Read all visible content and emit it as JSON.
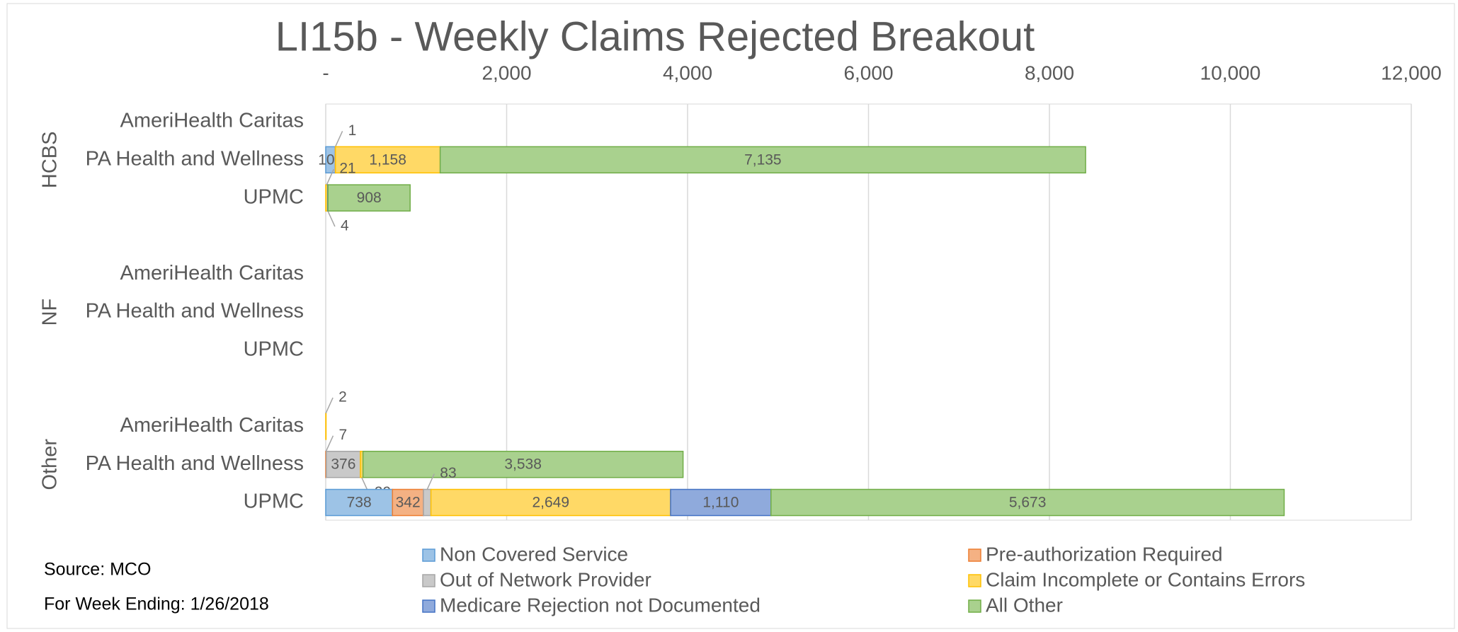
{
  "chart_data": {
    "type": "stacked-barh",
    "title": "LI15b - Weekly Claims Rejected Breakout",
    "groups": [
      "HCBS",
      "NF",
      "Other"
    ],
    "categories": [
      "AmeriHealth Caritas",
      "PA Health and Wellness",
      "UPMC",
      "AmeriHealth Caritas",
      "PA Health and Wellness",
      "UPMC",
      "AmeriHealth Caritas",
      "PA Health and Wellness",
      "UPMC"
    ],
    "series": [
      {
        "name": "Non Covered Service",
        "color": "#9dc3e6",
        "stroke": "#5b9bd5",
        "values": [
          null,
          106,
          null,
          null,
          null,
          null,
          null,
          null,
          738
        ],
        "value_labels": [
          null,
          null,
          null,
          null,
          null,
          null,
          null,
          null,
          null
        ]
      },
      {
        "name": "Pre-authorization Required",
        "color": "#f4b183",
        "stroke": "#ed7d31",
        "values": [
          null,
          1,
          null,
          null,
          null,
          null,
          null,
          7,
          342
        ],
        "value_labels": [
          null,
          null,
          null,
          null,
          null,
          null,
          null,
          null,
          null
        ]
      },
      {
        "name": "Out of Network Provider",
        "color": "#c9c9c9",
        "stroke": "#a5a5a5",
        "values": [
          null,
          null,
          null,
          null,
          null,
          null,
          null,
          376,
          83
        ],
        "value_labels": [
          null,
          null,
          null,
          null,
          null,
          null,
          null,
          null,
          null
        ]
      },
      {
        "name": "Claim Incomplete or Contains Errors",
        "color": "#ffd966",
        "stroke": "#ffc000",
        "values": [
          null,
          1158,
          21,
          null,
          null,
          null,
          2,
          29,
          2649
        ],
        "value_labels": [
          null,
          "1,158",
          null,
          null,
          null,
          null,
          null,
          null,
          "2,649"
        ]
      },
      {
        "name": "Medicare Rejection not Documented",
        "color": "#8faadc",
        "stroke": "#4472c4",
        "values": [
          null,
          null,
          4,
          null,
          null,
          null,
          null,
          null,
          1110
        ],
        "value_labels": [
          null,
          null,
          null,
          null,
          null,
          null,
          null,
          null,
          "1,110"
        ]
      },
      {
        "name": "All Other",
        "color": "#a9d18e",
        "stroke": "#70ad47",
        "values": [
          null,
          7135,
          908,
          null,
          null,
          null,
          null,
          3538,
          5673
        ],
        "value_labels": [
          null,
          "7,135",
          null,
          null,
          null,
          null,
          null,
          "3,538",
          "5,673"
        ]
      }
    ],
    "xlim": [
      0,
      12000
    ],
    "xticks": [
      {
        "value": 0,
        "label": "-"
      },
      {
        "value": 2000,
        "label": "2,000"
      },
      {
        "value": 4000,
        "label": "4,000"
      },
      {
        "value": 6000,
        "label": "6,000"
      },
      {
        "value": 8000,
        "label": "8,000"
      },
      {
        "value": 10000,
        "label": "10,000"
      },
      {
        "value": 12000,
        "label": "12,000"
      }
    ],
    "grid": true,
    "legend": "bottom",
    "notes": [
      "Source: MCO",
      "For Week Ending: 1/26/2018"
    ]
  }
}
